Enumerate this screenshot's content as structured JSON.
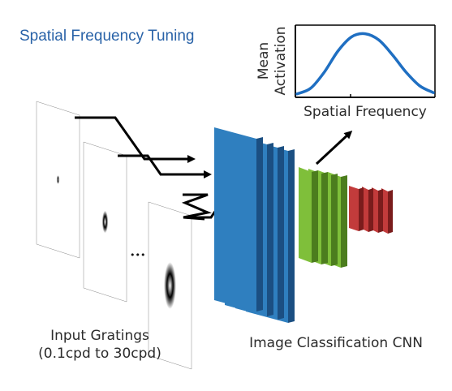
{
  "title": "Spatial Frequency Tuning",
  "inset_chart": {
    "xlabel": "Spatial Frequency",
    "ylabel_line1": "Mean",
    "ylabel_line2": "Activation",
    "curve_color": "#1f6fc2"
  },
  "input": {
    "caption_line1": "Input Gratings",
    "caption_line2": "(0.1cpd to 30cpd)",
    "ellipsis": "•••"
  },
  "cnn": {
    "caption": "Image Classification CNN",
    "colors": {
      "blue_front": "#2f7fbf",
      "blue_side": "#1b4f82",
      "green_front": "#7fbf3a",
      "green_side": "#4c7d1e",
      "red_front": "#c23b3b",
      "red_side": "#7a1c1c"
    }
  },
  "chart_data": {
    "type": "line",
    "xlabel": "Spatial Frequency",
    "ylabel": "Mean Activation",
    "x": [
      0,
      0.1,
      0.2,
      0.3,
      0.4,
      0.5,
      0.6,
      0.7,
      0.8,
      0.9,
      1.0
    ],
    "y": [
      0.03,
      0.12,
      0.38,
      0.72,
      0.95,
      1.0,
      0.9,
      0.66,
      0.38,
      0.16,
      0.05
    ],
    "xlim": [
      0,
      1
    ],
    "ylim": [
      0,
      1.1
    ],
    "grid": false
  }
}
